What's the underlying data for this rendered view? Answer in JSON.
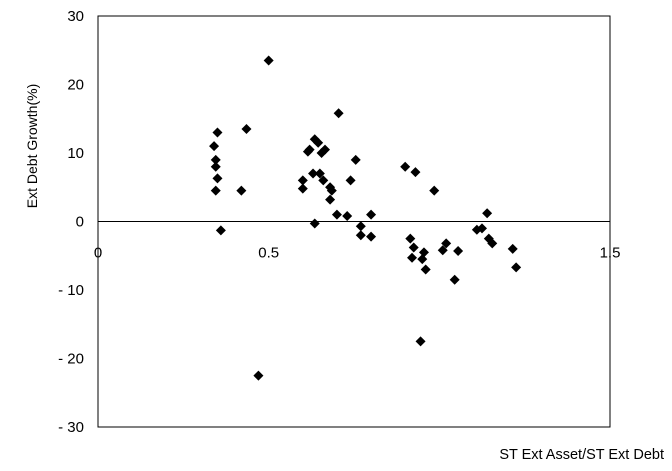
{
  "chart_data": {
    "type": "scatter",
    "title": "",
    "xlabel": "ST Ext Asset/ST Ext Debt",
    "ylabel": "Ext Debt Growth(%)",
    "xlim": [
      0,
      1.5
    ],
    "ylim": [
      -30,
      30
    ],
    "x_ticks": [
      {
        "value": 0,
        "label": "0"
      },
      {
        "value": 0.5,
        "label": "0.5"
      },
      {
        "value": 1.5,
        "label": "1.5"
      }
    ],
    "y_ticks": [
      {
        "value": 30,
        "label": "30"
      },
      {
        "value": 20,
        "label": "20"
      },
      {
        "value": 10,
        "label": "10"
      },
      {
        "value": 0,
        "label": "0"
      },
      {
        "value": -10,
        "label": "- 10"
      },
      {
        "value": -20,
        "label": "- 20"
      },
      {
        "value": -30,
        "label": "- 30"
      }
    ],
    "grid": false,
    "marker": "diamond",
    "marker_color": "#000000",
    "series": [
      {
        "points": [
          {
            "x": 0.34,
            "y": 11.0
          },
          {
            "x": 0.345,
            "y": 9.0
          },
          {
            "x": 0.35,
            "y": 13.0
          },
          {
            "x": 0.345,
            "y": 8.0
          },
          {
            "x": 0.35,
            "y": 6.3
          },
          {
            "x": 0.345,
            "y": 4.5
          },
          {
            "x": 0.36,
            "y": -1.3
          },
          {
            "x": 0.42,
            "y": 4.5
          },
          {
            "x": 0.435,
            "y": 13.5
          },
          {
            "x": 0.47,
            "y": -22.5
          },
          {
            "x": 0.5,
            "y": 23.5
          },
          {
            "x": 0.6,
            "y": 6.0
          },
          {
            "x": 0.6,
            "y": 4.8
          },
          {
            "x": 0.615,
            "y": 10.2
          },
          {
            "x": 0.62,
            "y": 10.5
          },
          {
            "x": 0.63,
            "y": 7.0
          },
          {
            "x": 0.635,
            "y": 12.0
          },
          {
            "x": 0.645,
            "y": 11.5
          },
          {
            "x": 0.65,
            "y": 7.0
          },
          {
            "x": 0.655,
            "y": 10.0
          },
          {
            "x": 0.66,
            "y": 6.0
          },
          {
            "x": 0.665,
            "y": 10.5
          },
          {
            "x": 0.635,
            "y": -0.3
          },
          {
            "x": 0.68,
            "y": 5.0
          },
          {
            "x": 0.68,
            "y": 3.2
          },
          {
            "x": 0.685,
            "y": 4.5
          },
          {
            "x": 0.7,
            "y": 1.0
          },
          {
            "x": 0.705,
            "y": 15.8
          },
          {
            "x": 0.73,
            "y": 0.8
          },
          {
            "x": 0.74,
            "y": 6.0
          },
          {
            "x": 0.755,
            "y": 9.0
          },
          {
            "x": 0.77,
            "y": -0.7
          },
          {
            "x": 0.77,
            "y": -2.0
          },
          {
            "x": 0.8,
            "y": 1.0
          },
          {
            "x": 0.8,
            "y": -2.2
          },
          {
            "x": 0.9,
            "y": 8.0
          },
          {
            "x": 0.915,
            "y": -2.5
          },
          {
            "x": 0.92,
            "y": -5.3
          },
          {
            "x": 0.925,
            "y": -3.8
          },
          {
            "x": 0.93,
            "y": 7.2
          },
          {
            "x": 0.945,
            "y": -17.5
          },
          {
            "x": 0.95,
            "y": -5.5
          },
          {
            "x": 0.955,
            "y": -4.5
          },
          {
            "x": 0.96,
            "y": -7.0
          },
          {
            "x": 0.985,
            "y": 4.5
          },
          {
            "x": 1.01,
            "y": -4.2
          },
          {
            "x": 1.02,
            "y": -3.2
          },
          {
            "x": 1.045,
            "y": -8.5
          },
          {
            "x": 1.055,
            "y": -4.3
          },
          {
            "x": 1.11,
            "y": -1.2
          },
          {
            "x": 1.125,
            "y": -1.0
          },
          {
            "x": 1.14,
            "y": 1.2
          },
          {
            "x": 1.145,
            "y": -2.5
          },
          {
            "x": 1.155,
            "y": -3.2
          },
          {
            "x": 1.215,
            "y": -4.0
          },
          {
            "x": 1.225,
            "y": -6.7
          }
        ]
      }
    ]
  }
}
